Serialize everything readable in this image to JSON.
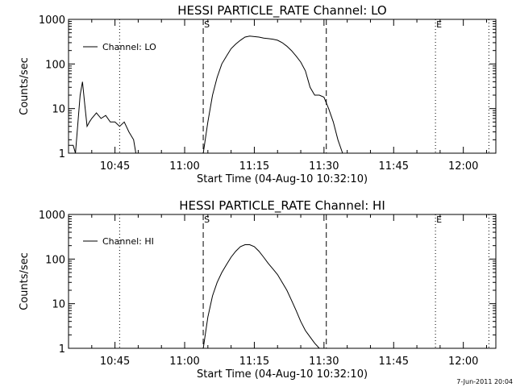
{
  "chart_data": [
    {
      "type": "line",
      "title": "HESSI PARTICLE_RATE Channel: LO",
      "xlabel": "Start Time (04-Aug-10 10:32:10)",
      "ylabel": "Counts/sec",
      "y_scale": "log",
      "ylim": [
        1,
        1000
      ],
      "xlim": [
        "10:35",
        "12:07"
      ],
      "x_ticks": [
        "10:45",
        "11:00",
        "11:15",
        "11:30",
        "11:45",
        "12:00"
      ],
      "y_ticks": [
        "1",
        "10",
        "100",
        "1000"
      ],
      "legend": {
        "placement": "top-left",
        "entries": [
          "Channel: LO"
        ]
      },
      "annotations": [
        {
          "label": "S",
          "x": "11:04",
          "style": "dashed"
        },
        {
          "label": "",
          "x": "11:30.5",
          "style": "dashed"
        },
        {
          "label": "E",
          "x": "11:54",
          "style": "dotted"
        },
        {
          "label": "",
          "x": "10:46",
          "style": "dotted"
        },
        {
          "label": "",
          "x": "12:05.5",
          "style": "dotted"
        }
      ],
      "series": [
        {
          "name": "Channel: LO",
          "segments": [
            {
              "x": [
                "10:35",
                "10:36",
                "10:36.5",
                "10:37.5",
                "10:38",
                "10:38.5",
                "10:39",
                "10:39.5",
                "10:40",
                "10:41",
                "10:42",
                "10:43",
                "10:44",
                "10:45",
                "10:46",
                "10:47",
                "10:48",
                "10:49",
                "10:49.5"
              ],
              "y": [
                1.5,
                1.5,
                1,
                20,
                40,
                12,
                4,
                5,
                6,
                8,
                6,
                7,
                5,
                5,
                4,
                5,
                3,
                2,
                1
              ]
            },
            {
              "x": [
                "11:04",
                "11:05",
                "11:06",
                "11:07",
                "11:08",
                "11:09",
                "11:10",
                "11:11",
                "11:12",
                "11:13",
                "11:14",
                "11:15",
                "11:16",
                "11:17",
                "11:18",
                "11:19",
                "11:20",
                "11:21",
                "11:22",
                "11:23",
                "11:24",
                "11:25",
                "11:26",
                "11:27",
                "11:28",
                "11:29",
                "11:30",
                "11:31",
                "11:32",
                "11:33",
                "11:34"
              ],
              "y": [
                1,
                5,
                20,
                50,
                100,
                150,
                220,
                280,
                340,
                400,
                420,
                410,
                400,
                380,
                370,
                360,
                340,
                300,
                250,
                200,
                150,
                110,
                70,
                30,
                20,
                20,
                18,
                10,
                5,
                2,
                1
              ]
            }
          ]
        }
      ]
    },
    {
      "type": "line",
      "title": "HESSI PARTICLE_RATE Channel: HI",
      "xlabel": "Start Time (04-Aug-10 10:32:10)",
      "ylabel": "Counts/sec",
      "y_scale": "log",
      "ylim": [
        1,
        1000
      ],
      "xlim": [
        "10:35",
        "12:07"
      ],
      "x_ticks": [
        "10:45",
        "11:00",
        "11:15",
        "11:30",
        "11:45",
        "12:00"
      ],
      "y_ticks": [
        "1",
        "10",
        "100",
        "1000"
      ],
      "legend": {
        "placement": "top-left",
        "entries": [
          "Channel: HI"
        ]
      },
      "annotations": [
        {
          "label": "S",
          "x": "11:04",
          "style": "dashed"
        },
        {
          "label": "",
          "x": "11:30.5",
          "style": "dashed"
        },
        {
          "label": "E",
          "x": "11:54",
          "style": "dotted"
        },
        {
          "label": "",
          "x": "10:46",
          "style": "dotted"
        },
        {
          "label": "",
          "x": "12:05.5",
          "style": "dotted"
        }
      ],
      "series": [
        {
          "name": "Channel: HI",
          "segments": [
            {
              "x": [
                "11:04",
                "11:05",
                "11:06",
                "11:07",
                "11:08",
                "11:09",
                "11:10",
                "11:11",
                "11:12",
                "11:13",
                "11:14",
                "11:15",
                "11:16",
                "11:17",
                "11:18",
                "11:19",
                "11:20",
                "11:21",
                "11:22",
                "11:23",
                "11:24",
                "11:25",
                "11:26",
                "11:27",
                "11:28",
                "11:29"
              ],
              "y": [
                1,
                5,
                15,
                30,
                50,
                75,
                110,
                150,
                190,
                210,
                210,
                190,
                150,
                110,
                80,
                60,
                45,
                30,
                20,
                12,
                7,
                4,
                2.5,
                1.8,
                1.3,
                1
              ]
            }
          ]
        }
      ]
    }
  ],
  "footer": {
    "timestamp": "7-Jun-2011 20:04"
  }
}
